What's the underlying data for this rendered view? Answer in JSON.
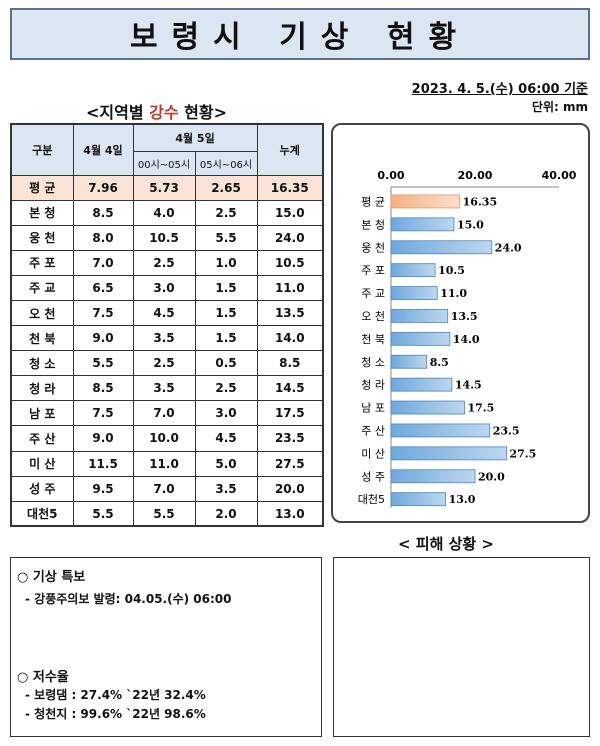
{
  "title": "보령시 기상 현황",
  "date_line": "2023. 4. 5.(수) 06:00 기준",
  "unit": "단위: mm",
  "rain_section": {
    "prefix": "<지역별 ",
    "highlight": "강수",
    "suffix": " 현황>"
  },
  "table": {
    "header_region": "구분",
    "header_apr4": "4월 4일",
    "header_apr5": "4월 5일",
    "header_h1": "00시~05시",
    "header_h2": "05시~06시",
    "header_total": "누계",
    "rows": [
      {
        "name": "평 균",
        "d4": "7.96",
        "h1": "5.73",
        "h2": "2.65",
        "total": "16.35"
      },
      {
        "name": "본 청",
        "d4": "8.5",
        "h1": "4.0",
        "h2": "2.5",
        "total": "15.0"
      },
      {
        "name": "웅 천",
        "d4": "8.0",
        "h1": "10.5",
        "h2": "5.5",
        "total": "24.0"
      },
      {
        "name": "주 포",
        "d4": "7.0",
        "h1": "2.5",
        "h2": "1.0",
        "total": "10.5"
      },
      {
        "name": "주 교",
        "d4": "6.5",
        "h1": "3.0",
        "h2": "1.5",
        "total": "11.0"
      },
      {
        "name": "오 천",
        "d4": "7.5",
        "h1": "4.5",
        "h2": "1.5",
        "total": "13.5"
      },
      {
        "name": "천 북",
        "d4": "9.0",
        "h1": "3.5",
        "h2": "1.5",
        "total": "14.0"
      },
      {
        "name": "청 소",
        "d4": "5.5",
        "h1": "2.5",
        "h2": "0.5",
        "total": "8.5"
      },
      {
        "name": "청 라",
        "d4": "8.5",
        "h1": "3.5",
        "h2": "2.5",
        "total": "14.5"
      },
      {
        "name": "남 포",
        "d4": "7.5",
        "h1": "7.0",
        "h2": "3.0",
        "total": "17.5"
      },
      {
        "name": "주 산",
        "d4": "9.0",
        "h1": "10.0",
        "h2": "4.5",
        "total": "23.5"
      },
      {
        "name": "미 산",
        "d4": "11.5",
        "h1": "11.0",
        "h2": "5.0",
        "total": "27.5"
      },
      {
        "name": "성 주",
        "d4": "9.5",
        "h1": "7.0",
        "h2": "3.5",
        "total": "20.0"
      },
      {
        "name": "대천5",
        "d4": "5.5",
        "h1": "5.5",
        "h2": "2.0",
        "total": "13.0"
      }
    ]
  },
  "chart_data": {
    "type": "bar",
    "orientation": "horizontal",
    "categories": [
      "평 균",
      "본 청",
      "웅 천",
      "주 포",
      "주 교",
      "오 천",
      "천 북",
      "청 소",
      "청 라",
      "남 포",
      "주 산",
      "미 산",
      "성 주",
      "대천5"
    ],
    "values": [
      16.35,
      15.0,
      24.0,
      10.5,
      11.0,
      13.5,
      14.0,
      8.5,
      14.5,
      17.5,
      23.5,
      27.5,
      20.0,
      13.0
    ],
    "value_labels": [
      "16.35",
      "15.0",
      "24.0",
      "10.5",
      "11.0",
      "13.5",
      "14.0",
      "8.5",
      "14.5",
      "17.5",
      "23.5",
      "27.5",
      "20.0",
      "13.0"
    ],
    "xlim": [
      0,
      40
    ],
    "x_ticks": [
      "0.00",
      "20.00",
      "40.00"
    ],
    "x_tick_values": [
      0,
      20,
      40
    ],
    "axis_position": "top",
    "grid": false,
    "colors": {
      "highlight": "#f4b183",
      "bar": "#6fa8dc",
      "bar_light": "#bdd7ee"
    }
  },
  "damage_title": "< 피해 상황 >",
  "info": {
    "weather_heading": "○ 기상 특보",
    "weather_item": "- 강풍주의보 발령: 04.05.(수) 06:00",
    "reservoir_heading": "○ 저수율",
    "reservoir_items": [
      "- 보령댐 : 27.4% `22년 32.4%",
      "- 청천지 : 99.6% `22년 98.6%"
    ]
  }
}
